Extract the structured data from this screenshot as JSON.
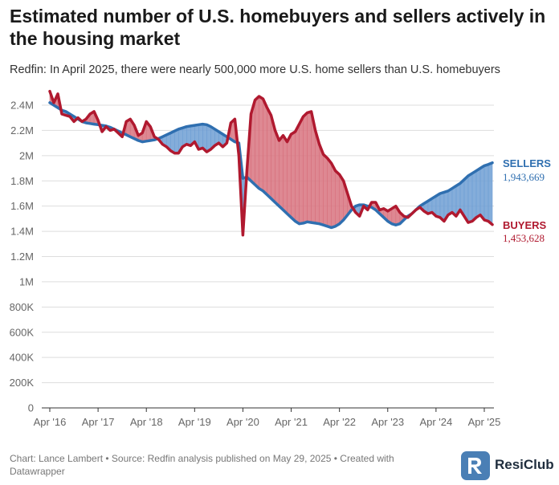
{
  "header": {
    "title": "Estimated number of U.S. homebuyers and sellers actively in the housing market",
    "subtitle": "Redfin: In April 2025, there were nearly 500,000 more U.S. home sellers than U.S. homebuyers"
  },
  "footer": {
    "credit": "Chart: Lance Lambert • Source: Redfin analysis published on May 29, 2025 • Created with Datawrapper",
    "logo_text": "ResiClub"
  },
  "colors": {
    "sellers": "#2f6fb0",
    "buyers": "#b0192f",
    "fill_sellers_above": "#6f9fd4",
    "fill_buyers_above": "#d8737f",
    "grid": "#dddddd"
  },
  "chart_data": {
    "type": "line",
    "title": "Estimated number of U.S. homebuyers and sellers actively in the housing market",
    "subtitle": "Redfin: In April 2025, there were nearly 500,000 more U.S. home sellers than U.S. homebuyers",
    "x_ticks": [
      "Apr '16",
      "Apr '17",
      "Apr '18",
      "Apr '19",
      "Apr '20",
      "Apr '21",
      "Apr '22",
      "Apr '23",
      "Apr '24",
      "Apr '25"
    ],
    "y_ticks": [
      "0",
      "200K",
      "400K",
      "600K",
      "800K",
      "1M",
      "1.2M",
      "1.4M",
      "1.6M",
      "1.8M",
      "2M",
      "2.2M",
      "2.4M"
    ],
    "ylim": [
      0,
      2400000
    ],
    "grid": true,
    "x_start": "2016-04",
    "x_end": "2025-04",
    "series": [
      {
        "name": "SELLERS",
        "end_label": "1,943,669",
        "values": [
          2420000,
          2400000,
          2380000,
          2360000,
          2350000,
          2330000,
          2310000,
          2290000,
          2270000,
          2260000,
          2255000,
          2250000,
          2245000,
          2240000,
          2235000,
          2225000,
          2210000,
          2195000,
          2180000,
          2165000,
          2150000,
          2135000,
          2120000,
          2110000,
          2115000,
          2120000,
          2125000,
          2135000,
          2150000,
          2165000,
          2180000,
          2195000,
          2210000,
          2220000,
          2230000,
          2235000,
          2240000,
          2245000,
          2250000,
          2245000,
          2230000,
          2210000,
          2190000,
          2170000,
          2150000,
          2130000,
          2110000,
          2100000,
          1820000,
          1830000,
          1800000,
          1770000,
          1740000,
          1720000,
          1690000,
          1660000,
          1630000,
          1600000,
          1570000,
          1540000,
          1510000,
          1480000,
          1460000,
          1465000,
          1475000,
          1470000,
          1465000,
          1460000,
          1450000,
          1440000,
          1430000,
          1440000,
          1460000,
          1490000,
          1530000,
          1570000,
          1600000,
          1610000,
          1610000,
          1600000,
          1590000,
          1570000,
          1540000,
          1510000,
          1480000,
          1460000,
          1450000,
          1460000,
          1490000,
          1520000,
          1540000,
          1570000,
          1600000,
          1620000,
          1640000,
          1660000,
          1680000,
          1700000,
          1710000,
          1720000,
          1740000,
          1760000,
          1780000,
          1810000,
          1840000,
          1860000,
          1880000,
          1900000,
          1920000,
          1930000,
          1943669
        ]
      },
      {
        "name": "BUYERS",
        "end_label": "1,453,628",
        "values": [
          2510000,
          2420000,
          2490000,
          2330000,
          2320000,
          2310000,
          2270000,
          2300000,
          2270000,
          2290000,
          2330000,
          2350000,
          2280000,
          2190000,
          2230000,
          2200000,
          2210000,
          2180000,
          2150000,
          2270000,
          2290000,
          2240000,
          2160000,
          2180000,
          2270000,
          2230000,
          2150000,
          2130000,
          2090000,
          2070000,
          2040000,
          2020000,
          2020000,
          2070000,
          2090000,
          2080000,
          2110000,
          2050000,
          2060000,
          2030000,
          2050000,
          2080000,
          2100000,
          2070000,
          2100000,
          2260000,
          2290000,
          2000000,
          1370000,
          1880000,
          2330000,
          2440000,
          2470000,
          2450000,
          2380000,
          2320000,
          2200000,
          2120000,
          2160000,
          2110000,
          2170000,
          2190000,
          2250000,
          2310000,
          2340000,
          2350000,
          2200000,
          2090000,
          2010000,
          1980000,
          1940000,
          1880000,
          1850000,
          1800000,
          1700000,
          1600000,
          1550000,
          1520000,
          1600000,
          1570000,
          1630000,
          1630000,
          1570000,
          1580000,
          1560000,
          1580000,
          1600000,
          1550000,
          1520000,
          1510000,
          1540000,
          1570000,
          1590000,
          1560000,
          1540000,
          1550000,
          1520000,
          1510000,
          1480000,
          1530000,
          1550000,
          1520000,
          1570000,
          1520000,
          1470000,
          1480000,
          1510000,
          1530000,
          1490000,
          1480000,
          1453628
        ]
      }
    ]
  }
}
